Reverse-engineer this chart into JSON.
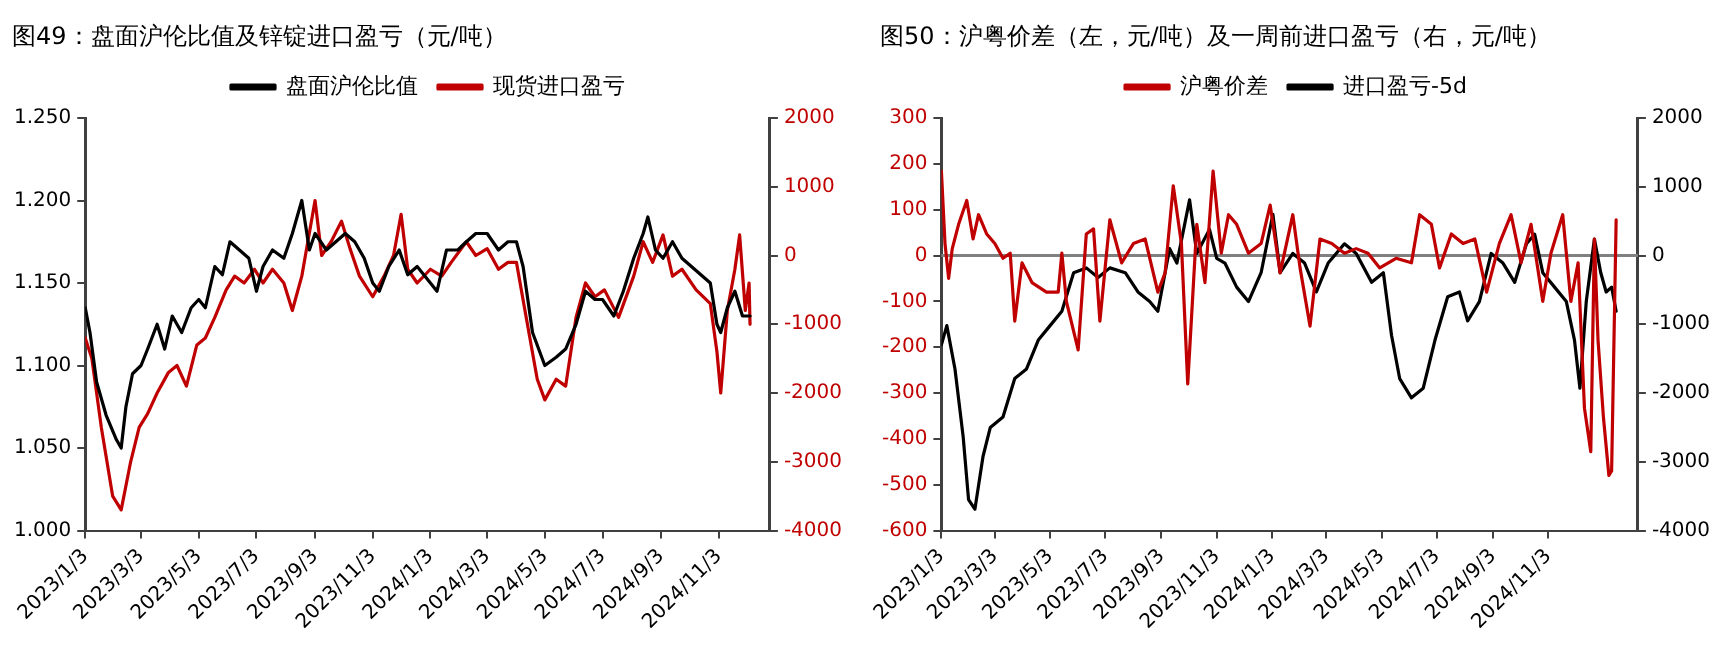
{
  "chart_data": [
    {
      "type": "line",
      "title": "图49：盘面沪伦比值及锌锭进口盈亏（元/吨）",
      "legend": "top",
      "grid": false,
      "marker": "none",
      "line_style": "solid",
      "xlim": [
        "2023-01-03",
        "2024-12-27"
      ],
      "xticks": [
        {
          "value": "2023-01-03",
          "label": "2023/1/3"
        },
        {
          "value": "2023-03-03",
          "label": "2023/3/3"
        },
        {
          "value": "2023-05-03",
          "label": "2023/5/3"
        },
        {
          "value": "2023-07-03",
          "label": "2023/7/3"
        },
        {
          "value": "2023-09-03",
          "label": "2023/9/3"
        },
        {
          "value": "2023-11-03",
          "label": "2023/11/3"
        },
        {
          "value": "2024-01-03",
          "label": "2024/1/3"
        },
        {
          "value": "2024-03-03",
          "label": "2024/3/3"
        },
        {
          "value": "2024-05-03",
          "label": "2024/5/3"
        },
        {
          "value": "2024-07-03",
          "label": "2024/7/3"
        },
        {
          "value": "2024-09-03",
          "label": "2024/9/3"
        },
        {
          "value": "2024-11-03",
          "label": "2024/11/3"
        }
      ],
      "ylim": [
        1.0,
        1.25
      ],
      "yticks": [
        {
          "value": 1.0,
          "label": "1.000"
        },
        {
          "value": 1.05,
          "label": "1.050"
        },
        {
          "value": 1.1,
          "label": "1.100"
        },
        {
          "value": 1.15,
          "label": "1.150"
        },
        {
          "value": 1.2,
          "label": "1.200"
        },
        {
          "value": 1.25,
          "label": "1.250"
        }
      ],
      "y2lim": [
        -4000,
        2000
      ],
      "y2ticks": [
        -4000,
        -3000,
        -2000,
        -1000,
        0,
        1000,
        2000
      ],
      "series": [
        {
          "name": "盘面沪伦比值",
          "color": "#000000",
          "x": [
            "2023-01-03",
            "2023-01-08",
            "2023-01-15",
            "2023-01-25",
            "2023-02-05",
            "2023-02-10",
            "2023-02-15",
            "2023-02-22",
            "2023-03-03",
            "2023-03-10",
            "2023-03-20",
            "2023-03-28",
            "2023-04-05",
            "2023-04-15",
            "2023-04-25",
            "2023-05-03",
            "2023-05-10",
            "2023-05-20",
            "2023-05-28",
            "2023-06-05",
            "2023-06-15",
            "2023-06-25",
            "2023-07-03",
            "2023-07-10",
            "2023-07-20",
            "2023-08-01",
            "2023-08-10",
            "2023-08-20",
            "2023-08-28",
            "2023-09-03",
            "2023-09-15",
            "2023-09-25",
            "2023-10-05",
            "2023-10-15",
            "2023-10-25",
            "2023-11-03",
            "2023-11-10",
            "2023-11-20",
            "2023-12-01",
            "2023-12-10",
            "2023-12-20",
            "2024-01-03",
            "2024-01-10",
            "2024-01-20",
            "2024-02-01",
            "2024-02-10",
            "2024-02-20",
            "2024-03-03",
            "2024-03-15",
            "2024-03-25",
            "2024-04-03",
            "2024-04-10",
            "2024-04-20",
            "2024-05-03",
            "2024-05-15",
            "2024-05-25",
            "2024-06-05",
            "2024-06-15",
            "2024-06-25",
            "2024-07-03",
            "2024-07-15",
            "2024-07-25",
            "2024-08-05",
            "2024-08-15",
            "2024-08-20",
            "2024-08-28",
            "2024-09-05",
            "2024-09-15",
            "2024-09-25",
            "2024-10-05",
            "2024-10-15",
            "2024-10-25",
            "2024-11-01",
            "2024-11-05",
            "2024-11-12",
            "2024-11-20",
            "2024-11-28",
            "2024-12-06"
          ],
          "values": [
            1.135,
            1.12,
            1.09,
            1.07,
            1.055,
            1.05,
            1.075,
            1.095,
            1.1,
            1.11,
            1.125,
            1.11,
            1.13,
            1.12,
            1.135,
            1.14,
            1.135,
            1.16,
            1.155,
            1.175,
            1.17,
            1.165,
            1.145,
            1.16,
            1.17,
            1.165,
            1.18,
            1.2,
            1.17,
            1.18,
            1.17,
            1.175,
            1.18,
            1.175,
            1.165,
            1.15,
            1.145,
            1.16,
            1.17,
            1.155,
            1.16,
            1.15,
            1.145,
            1.17,
            1.17,
            1.175,
            1.18,
            1.18,
            1.17,
            1.175,
            1.175,
            1.16,
            1.12,
            1.1,
            1.105,
            1.11,
            1.125,
            1.145,
            1.14,
            1.14,
            1.13,
            1.145,
            1.165,
            1.18,
            1.19,
            1.17,
            1.165,
            1.175,
            1.165,
            1.16,
            1.155,
            1.15,
            1.125,
            1.12,
            1.135,
            1.145,
            1.13,
            1.13
          ]
        },
        {
          "name": "现货进口盈亏",
          "color": "#c00000",
          "axis": "y2",
          "x": [
            "2023-01-03",
            "2023-01-10",
            "2023-01-20",
            "2023-02-01",
            "2023-02-10",
            "2023-02-20",
            "2023-03-01",
            "2023-03-10",
            "2023-03-20",
            "2023-04-01",
            "2023-04-10",
            "2023-04-20",
            "2023-05-01",
            "2023-05-10",
            "2023-05-20",
            "2023-06-01",
            "2023-06-10",
            "2023-06-20",
            "2023-07-01",
            "2023-07-10",
            "2023-07-20",
            "2023-08-01",
            "2023-08-10",
            "2023-08-20",
            "2023-09-03",
            "2023-09-10",
            "2023-09-20",
            "2023-10-01",
            "2023-10-10",
            "2023-10-20",
            "2023-11-03",
            "2023-11-15",
            "2023-11-25",
            "2023-12-03",
            "2023-12-10",
            "2023-12-20",
            "2024-01-03",
            "2024-01-15",
            "2024-01-25",
            "2024-02-10",
            "2024-02-20",
            "2024-03-03",
            "2024-03-15",
            "2024-03-25",
            "2024-04-03",
            "2024-04-12",
            "2024-04-25",
            "2024-05-03",
            "2024-05-15",
            "2024-05-25",
            "2024-06-05",
            "2024-06-15",
            "2024-06-25",
            "2024-07-05",
            "2024-07-20",
            "2024-08-05",
            "2024-08-15",
            "2024-08-25",
            "2024-09-05",
            "2024-09-15",
            "2024-09-25",
            "2024-10-10",
            "2024-10-25",
            "2024-11-01",
            "2024-11-05",
            "2024-11-12",
            "2024-11-20",
            "2024-11-25",
            "2024-12-01",
            "2024-12-05",
            "2024-12-06"
          ],
          "values": [
            -1200,
            -1500,
            -2500,
            -3500,
            -3700,
            -3000,
            -2500,
            -2300,
            -2000,
            -1700,
            -1600,
            -1900,
            -1300,
            -1200,
            -900,
            -500,
            -300,
            -400,
            -200,
            -400,
            -200,
            -400,
            -800,
            -300,
            800,
            0,
            200,
            500,
            100,
            -300,
            -600,
            -300,
            0,
            600,
            -200,
            -400,
            -200,
            -300,
            -100,
            200,
            0,
            100,
            -200,
            -100,
            -100,
            -800,
            -1800,
            -2100,
            -1800,
            -1900,
            -900,
            -400,
            -600,
            -500,
            -900,
            -300,
            200,
            -100,
            300,
            -300,
            -200,
            -500,
            -700,
            -1400,
            -2000,
            -800,
            -200,
            300,
            -800,
            -400,
            -1000
          ]
        }
      ]
    },
    {
      "type": "line",
      "title": "图50：沪粤价差（左，元/吨）及一周前进口盈亏（右，元/吨）",
      "legend": "top",
      "grid": false,
      "marker": "none",
      "line_style": "solid",
      "xlim": [
        "2023-01-03",
        "2025-02-10"
      ],
      "xticks": [
        {
          "value": "2023-01-03",
          "label": "2023/1/3"
        },
        {
          "value": "2023-03-03",
          "label": "2023/3/3"
        },
        {
          "value": "2023-05-03",
          "label": "2023/5/3"
        },
        {
          "value": "2023-07-03",
          "label": "2023/7/3"
        },
        {
          "value": "2023-09-03",
          "label": "2023/9/3"
        },
        {
          "value": "2023-11-03",
          "label": "2023/11/3"
        },
        {
          "value": "2024-01-03",
          "label": "2024/1/3"
        },
        {
          "value": "2024-03-03",
          "label": "2024/3/3"
        },
        {
          "value": "2024-05-03",
          "label": "2024/5/3"
        },
        {
          "value": "2024-07-03",
          "label": "2024/7/3"
        },
        {
          "value": "2024-09-03",
          "label": "2024/9/3"
        },
        {
          "value": "2024-11-03",
          "label": "2024/11/3"
        }
      ],
      "ylim": [
        -600,
        300
      ],
      "yticks": [
        -600,
        -500,
        -400,
        -300,
        -200,
        -100,
        0,
        100,
        200,
        300
      ],
      "y2lim": [
        -4000,
        2000
      ],
      "y2ticks": [
        -4000,
        -3000,
        -2000,
        -1000,
        0,
        1000,
        2000
      ],
      "ref_lines": [
        {
          "axis": "y",
          "value": 0,
          "color": "#808080"
        }
      ],
      "series": [
        {
          "name": "沪粤价差",
          "color": "#c00000",
          "x": [
            "2023-01-03",
            "2023-01-07",
            "2023-01-11",
            "2023-01-15",
            "2023-01-22",
            "2023-01-31",
            "2023-02-07",
            "2023-02-13",
            "2023-02-22",
            "2023-03-03",
            "2023-03-12",
            "2023-03-20",
            "2023-03-25",
            "2023-04-02",
            "2023-04-13",
            "2023-04-29",
            "2023-05-12",
            "2023-05-16",
            "2023-05-21",
            "2023-06-03",
            "2023-06-12",
            "2023-06-20",
            "2023-06-27",
            "2023-07-08",
            "2023-07-21",
            "2023-08-03",
            "2023-08-16",
            "2023-08-30",
            "2023-09-07",
            "2023-09-16",
            "2023-09-25",
            "2023-10-02",
            "2023-10-12",
            "2023-10-21",
            "2023-10-30",
            "2023-11-08",
            "2023-11-16",
            "2023-11-25",
            "2023-12-08",
            "2023-12-22",
            "2024-01-01",
            "2024-01-12",
            "2024-01-26",
            "2024-02-03",
            "2024-02-14",
            "2024-02-25",
            "2024-03-09",
            "2024-03-23",
            "2024-04-05",
            "2024-04-18",
            "2024-05-01",
            "2024-05-19",
            "2024-06-05",
            "2024-06-14",
            "2024-06-27",
            "2024-07-06",
            "2024-07-19",
            "2024-08-01",
            "2024-08-14",
            "2024-08-27",
            "2024-09-10",
            "2024-09-23",
            "2024-10-04",
            "2024-10-15",
            "2024-10-28",
            "2024-11-06",
            "2024-11-19",
            "2024-11-28",
            "2024-12-06",
            "2024-12-13",
            "2024-12-20",
            "2024-12-24",
            "2024-12-28",
            "2025-01-03",
            "2025-01-09",
            "2025-01-12",
            "2025-01-17"
          ],
          "values": [
            184,
            26,
            -50,
            15,
            68,
            120,
            36,
            89,
            47,
            26,
            -6,
            5,
            -143,
            -16,
            -59,
            -80,
            -80,
            5,
            -100,
            -206,
            47,
            58,
            -143,
            78,
            -16,
            26,
            36,
            -80,
            -38,
            152,
            26,
            -280,
            68,
            -59,
            184,
            5,
            89,
            68,
            5,
            26,
            110,
            -38,
            89,
            -27,
            -154,
            36,
            26,
            5,
            15,
            5,
            -27,
            -6,
            -16,
            89,
            68,
            -27,
            47,
            26,
            36,
            -80,
            26,
            89,
            -16,
            68,
            -100,
            5,
            89,
            -100,
            -16,
            -333,
            -428,
            36,
            -185,
            -354,
            -480,
            -470,
            78
          ]
        },
        {
          "name": "进口盈亏-5d",
          "color": "#000000",
          "axis": "y2",
          "x": [
            "2023-01-03",
            "2023-01-09",
            "2023-01-18",
            "2023-01-27",
            "2023-02-02",
            "2023-02-09",
            "2023-02-18",
            "2023-02-26",
            "2023-03-12",
            "2023-03-25",
            "2023-04-07",
            "2023-04-20",
            "2023-05-03",
            "2023-05-16",
            "2023-05-29",
            "2023-06-12",
            "2023-06-25",
            "2023-07-08",
            "2023-07-25",
            "2023-08-08",
            "2023-08-21",
            "2023-08-30",
            "2023-09-12",
            "2023-09-20",
            "2023-10-04",
            "2023-10-12",
            "2023-10-26",
            "2023-11-03",
            "2023-11-12",
            "2023-11-25",
            "2023-12-08",
            "2023-12-22",
            "2024-01-04",
            "2024-01-12",
            "2024-01-26",
            "2024-02-08",
            "2024-02-21",
            "2024-03-05",
            "2024-03-23",
            "2024-04-05",
            "2024-04-22",
            "2024-05-05",
            "2024-05-14",
            "2024-05-23",
            "2024-06-05",
            "2024-06-18",
            "2024-07-01",
            "2024-07-15",
            "2024-07-28",
            "2024-08-06",
            "2024-08-19",
            "2024-09-01",
            "2024-09-14",
            "2024-09-27",
            "2024-10-10",
            "2024-10-19",
            "2024-10-28",
            "2024-11-10",
            "2024-11-23",
            "2024-12-02",
            "2024-12-08",
            "2024-12-15",
            "2024-12-24",
            "2024-12-31",
            "2025-01-06",
            "2025-01-12",
            "2025-01-17"
          ],
          "values": [
            -1300,
            -1020,
            -1650,
            -2630,
            -3550,
            -3690,
            -2920,
            -2500,
            -2350,
            -1790,
            -1650,
            -1230,
            -1020,
            -810,
            -250,
            -180,
            -320,
            -180,
            -250,
            -530,
            -670,
            -810,
            100,
            -110,
            810,
            30,
            380,
            -40,
            -110,
            -460,
            -670,
            -250,
            600,
            -250,
            30,
            -110,
            -530,
            -110,
            170,
            30,
            -390,
            -250,
            -1160,
            -1790,
            -2070,
            -1930,
            -1230,
            -600,
            -530,
            -950,
            -670,
            30,
            -110,
            -390,
            170,
            310,
            -250,
            -460,
            -670,
            -1230,
            -1930,
            -670,
            240,
            -250,
            -530,
            -460,
            -810
          ]
        }
      ]
    }
  ]
}
